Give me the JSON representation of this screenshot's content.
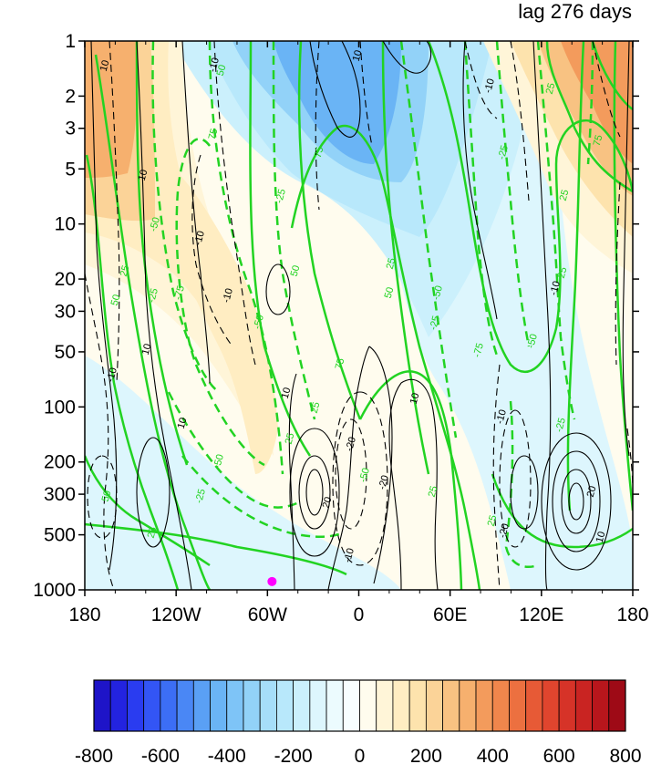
{
  "chart_data": {
    "type": "heatmap",
    "title": "lag 276 days",
    "xlabel": "",
    "ylabel": "",
    "x_axis": {
      "range": [
        -180,
        180
      ],
      "ticks": [
        -180,
        -120,
        -60,
        0,
        60,
        120,
        180
      ],
      "tick_labels": [
        "180",
        "120W",
        "60W",
        "0",
        "60E",
        "120E",
        "180"
      ]
    },
    "y_axis": {
      "scale": "log",
      "inverted": true,
      "range": [
        1,
        1000
      ],
      "ticks": [
        1,
        2,
        3,
        5,
        10,
        20,
        30,
        50,
        100,
        200,
        300,
        500,
        1000
      ],
      "tick_labels": [
        "1",
        "2",
        "3",
        "5",
        "10",
        "20",
        "30",
        "50",
        "100",
        "200",
        "300",
        "500",
        "1000"
      ]
    },
    "colorbar": {
      "levels": [
        -800,
        -750,
        -700,
        -650,
        -600,
        -550,
        -500,
        -450,
        -400,
        -350,
        -300,
        -250,
        -200,
        -150,
        -100,
        -50,
        0,
        50,
        100,
        150,
        200,
        250,
        300,
        350,
        400,
        450,
        500,
        550,
        600,
        650,
        700,
        750,
        800
      ],
      "labeled_values": [
        "-800",
        "-600",
        "-400",
        "-200",
        "0",
        "200",
        "400",
        "600",
        "800"
      ],
      "colors": [
        "#1e14c8",
        "#2323e0",
        "#2a3cf0",
        "#3355f5",
        "#3c6ef5",
        "#4a87f5",
        "#5aa0f5",
        "#6ab4f5",
        "#7ec4f7",
        "#92d2f8",
        "#a6def9",
        "#b8e8fb",
        "#cbf0fc",
        "#ddf6fd",
        "#ecfbfe",
        "#f8feff",
        "#fffcee",
        "#fff5d8",
        "#ffedc2",
        "#fde3ad",
        "#fbd398",
        "#f8c282",
        "#f6b06e",
        "#f39b5c",
        "#f0864c",
        "#ec7040",
        "#e75a36",
        "#e0452e",
        "#d63328",
        "#c92422",
        "#b8161c",
        "#9e0a16"
      ]
    },
    "black_contour_labels": [
      "10",
      "-10",
      "20",
      "-20"
    ],
    "green_contour_labels": [
      "25",
      "50",
      "75",
      "-25",
      "-50",
      "-75"
    ],
    "marker": {
      "lon": -57,
      "pressure": 900,
      "color": "#ff00ff"
    },
    "colors": {
      "green_contour": "#22d322",
      "black_contour": "#000000",
      "marker": "#ff00ff"
    }
  }
}
